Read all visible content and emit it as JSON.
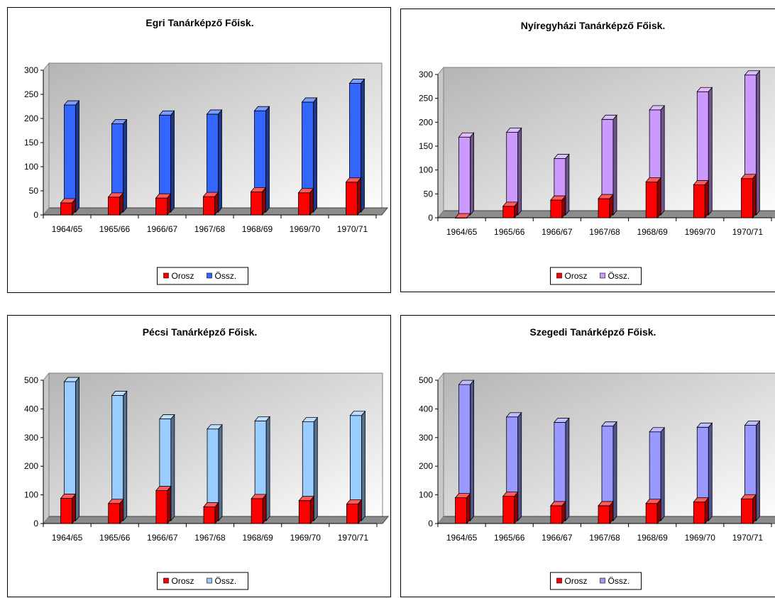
{
  "legend_labels": [
    "Orosz",
    "Össz."
  ],
  "chart_data": [
    {
      "type": "bar",
      "title": "Egri Tanárképző Főisk.",
      "categories": [
        "1964/65",
        "1965/66",
        "1966/67",
        "1967/68",
        "1968/69",
        "1969/70",
        "1970/71"
      ],
      "series": [
        {
          "name": "Orosz",
          "values": [
            25,
            37,
            35,
            38,
            48,
            46,
            68
          ]
        },
        {
          "name": "Össz.",
          "values": [
            222,
            183,
            201,
            203,
            210,
            228,
            267
          ]
        }
      ],
      "ylim": [
        0,
        300
      ],
      "yticks": [
        0,
        50,
        100,
        150,
        200,
        250,
        300
      ],
      "colors": {
        "Orosz": "#ff0000",
        "Össz.": "#3366ff"
      },
      "legend": "bottom",
      "grid": false
    },
    {
      "type": "bar",
      "title": "Nyíregyházi Tanárképző Főisk.",
      "categories": [
        "1964/65",
        "1965/66",
        "1966/67",
        "1967/68",
        "1968/69",
        "1969/70",
        "1970/71"
      ],
      "series": [
        {
          "name": "Orosz",
          "values": [
            0,
            24,
            37,
            40,
            75,
            69,
            82
          ]
        },
        {
          "name": "Össz.",
          "values": [
            163,
            173,
            118,
            200,
            220,
            258,
            293
          ]
        }
      ],
      "ylim": [
        0,
        300
      ],
      "yticks": [
        0,
        50,
        100,
        150,
        200,
        250,
        300
      ],
      "colors": {
        "Orosz": "#ff0000",
        "Össz.": "#cc99ff"
      },
      "legend": "bottom",
      "grid": false
    },
    {
      "type": "bar",
      "title": "Pécsi Tanárképző Főisk.",
      "categories": [
        "1964/65",
        "1965/66",
        "1966/67",
        "1967/68",
        "1968/69",
        "1969/70",
        "1970/71"
      ],
      "series": [
        {
          "name": "Orosz",
          "values": [
            88,
            70,
            115,
            58,
            87,
            80,
            68
          ]
        },
        {
          "name": "Össz.",
          "values": [
            485,
            437,
            355,
            320,
            348,
            345,
            367
          ]
        }
      ],
      "ylim": [
        0,
        500
      ],
      "yticks": [
        0,
        100,
        200,
        300,
        400,
        500
      ],
      "colors": {
        "Orosz": "#ff0000",
        "Össz.": "#99ccff"
      },
      "legend": "bottom",
      "grid": false
    },
    {
      "type": "bar",
      "title": "Szegedi Tanárképző Főisk.",
      "categories": [
        "1964/65",
        "1965/66",
        "1966/67",
        "1967/68",
        "1968/69",
        "1969/70",
        "1970/71"
      ],
      "series": [
        {
          "name": "Orosz",
          "values": [
            90,
            95,
            62,
            62,
            70,
            75,
            86
          ]
        },
        {
          "name": "Össz.",
          "values": [
            475,
            362,
            343,
            330,
            310,
            326,
            333
          ]
        }
      ],
      "ylim": [
        0,
        500
      ],
      "yticks": [
        0,
        100,
        200,
        300,
        400,
        500
      ],
      "colors": {
        "Orosz": "#ff0000",
        "Össz.": "#9999ff"
      },
      "legend": "bottom",
      "grid": false
    }
  ]
}
